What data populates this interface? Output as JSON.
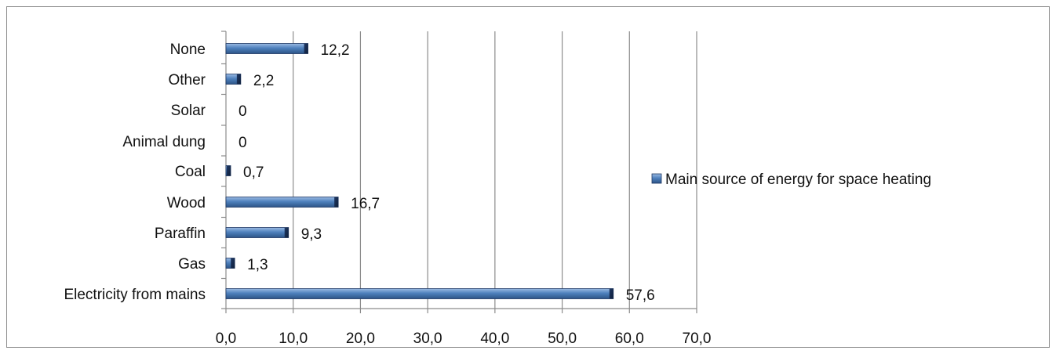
{
  "chart_data": {
    "type": "bar",
    "orientation": "horizontal",
    "title": "",
    "xlabel": "",
    "ylabel": "",
    "categories": [
      "None",
      "Other",
      "Solar",
      "Animal dung",
      "Coal",
      "Wood",
      "Paraffin",
      "Gas",
      "Electricity from mains"
    ],
    "series": [
      {
        "name": "Main source of energy for space heating",
        "values": [
          12.2,
          2.2,
          0,
          0,
          0.7,
          16.7,
          9.3,
          1.3,
          57.6
        ],
        "data_labels": [
          "12,2",
          "2,2",
          "0",
          "0",
          "0,7",
          "16,7",
          "9,3",
          "1,3",
          "57,6"
        ]
      }
    ],
    "xlim": [
      0,
      70
    ],
    "x_ticks": [
      0,
      10,
      20,
      30,
      40,
      50,
      60,
      70
    ],
    "x_tick_labels": [
      "0,0",
      "10,0",
      "20,0",
      "30,0",
      "40,0",
      "50,0",
      "60,0",
      "70,0"
    ],
    "grid": "vertical",
    "legend_position": "right",
    "bar_color": "#4f81bd",
    "bar_edge_color": "#1f3864"
  }
}
